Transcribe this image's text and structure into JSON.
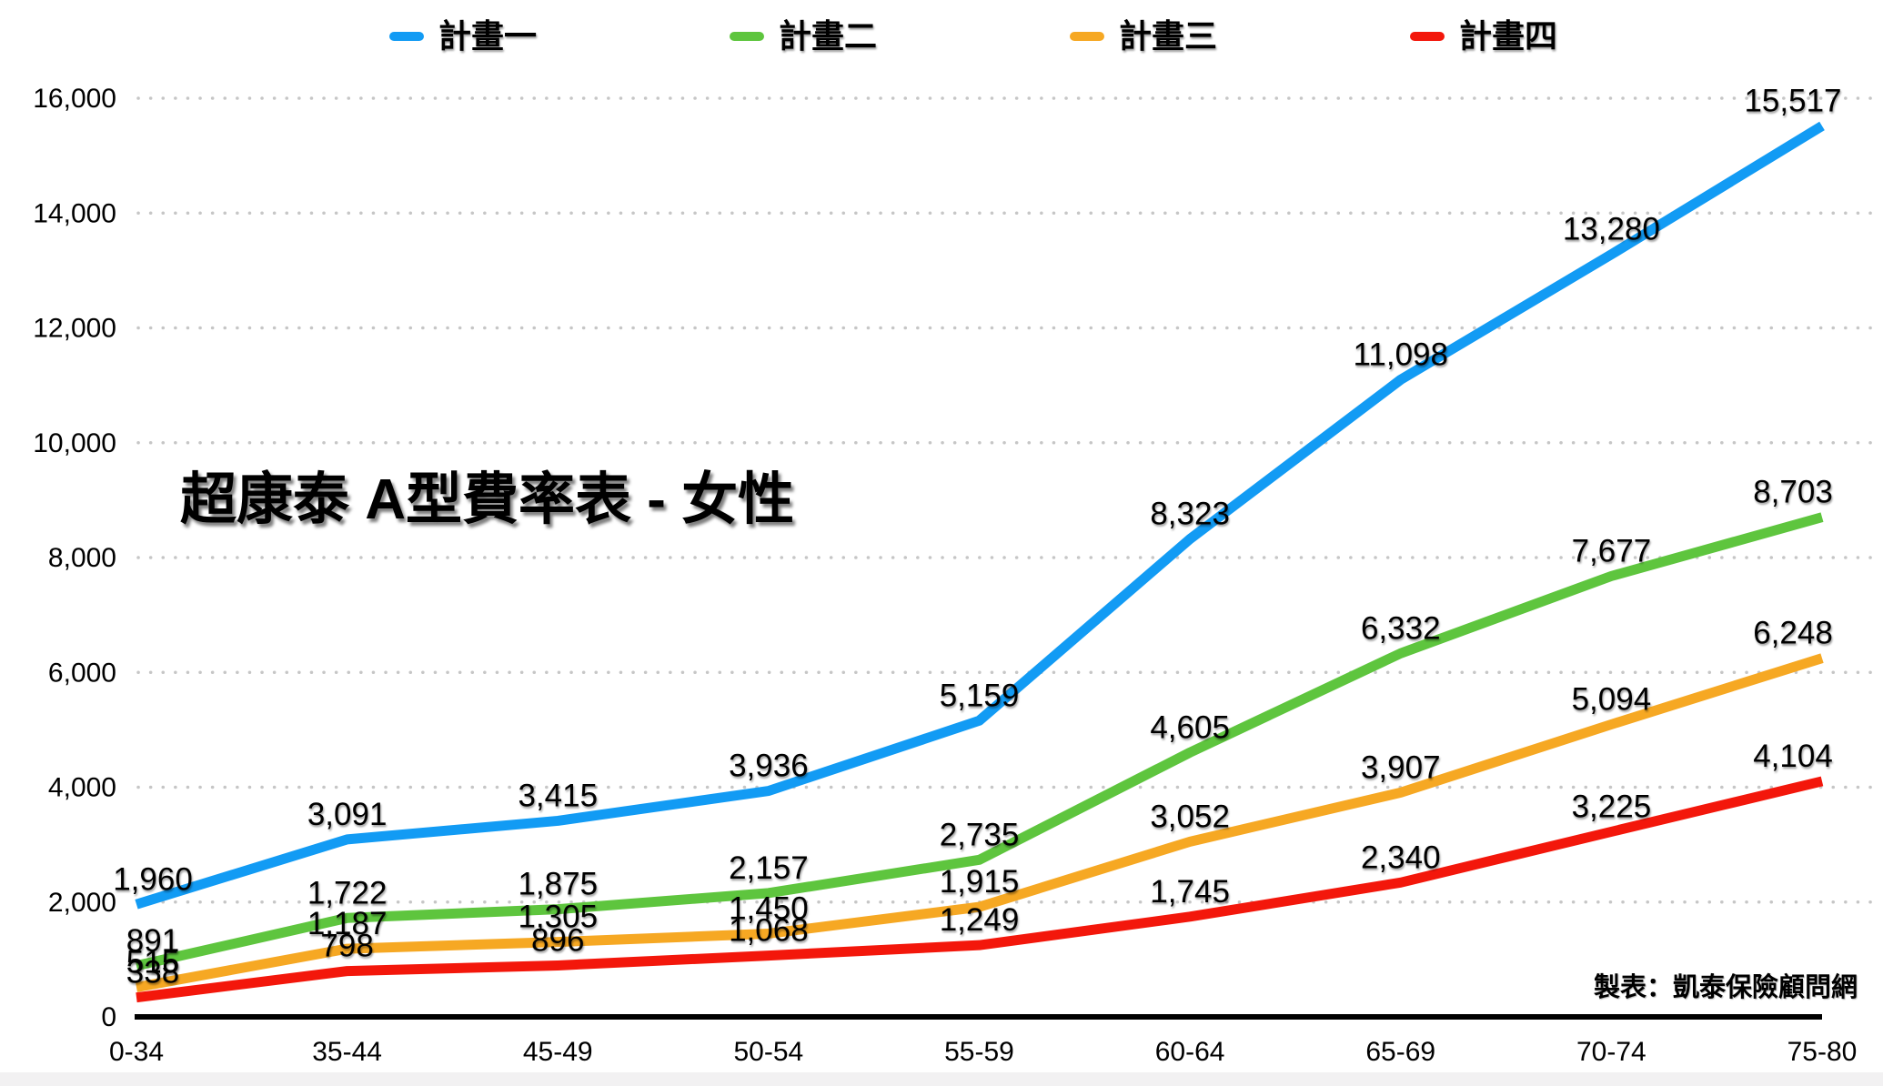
{
  "title": "超康泰 A型費率表 - 女性",
  "attribution": "製表：凱泰保險顧問網",
  "colors": {
    "plan1": "#129BF4",
    "plan2": "#5EC53E",
    "plan3": "#F6A823",
    "plan4": "#F3170B",
    "gridline": "#C6C6C6",
    "axis": "#000000",
    "background": "#FFFFFF"
  },
  "chart_data": {
    "type": "line",
    "title": "超康泰 A型費率表 - 女性",
    "categories": [
      "0-34",
      "35-44",
      "45-49",
      "50-54",
      "55-59",
      "60-64",
      "65-69",
      "70-74",
      "75-80"
    ],
    "series": [
      {
        "name": "計畫一",
        "key": "plan1",
        "color": "#129BF4",
        "values": [
          1960,
          3091,
          3415,
          3936,
          5159,
          8323,
          11098,
          13280,
          15517
        ]
      },
      {
        "name": "計畫二",
        "key": "plan2",
        "color": "#5EC53E",
        "values": [
          891,
          1722,
          1875,
          2157,
          2735,
          4605,
          6332,
          7677,
          8703
        ]
      },
      {
        "name": "計畫三",
        "key": "plan3",
        "color": "#F6A823",
        "values": [
          515,
          1187,
          1305,
          1450,
          1915,
          3052,
          3907,
          5094,
          6248
        ]
      },
      {
        "name": "計畫四",
        "key": "plan4",
        "color": "#F3170B",
        "values": [
          338,
          798,
          896,
          1068,
          1249,
          1745,
          2340,
          3225,
          4104
        ]
      }
    ],
    "xlabel": "",
    "ylabel": "",
    "ylim": [
      0,
      16000
    ],
    "ytick_step": 2000,
    "y_tick_labels": [
      "0",
      "2,000",
      "4,000",
      "6,000",
      "8,000",
      "10,000",
      "12,000",
      "14,000",
      "16,000"
    ],
    "grid": "horizontal-dotted",
    "legend_position": "top",
    "data_labels": "shown"
  }
}
